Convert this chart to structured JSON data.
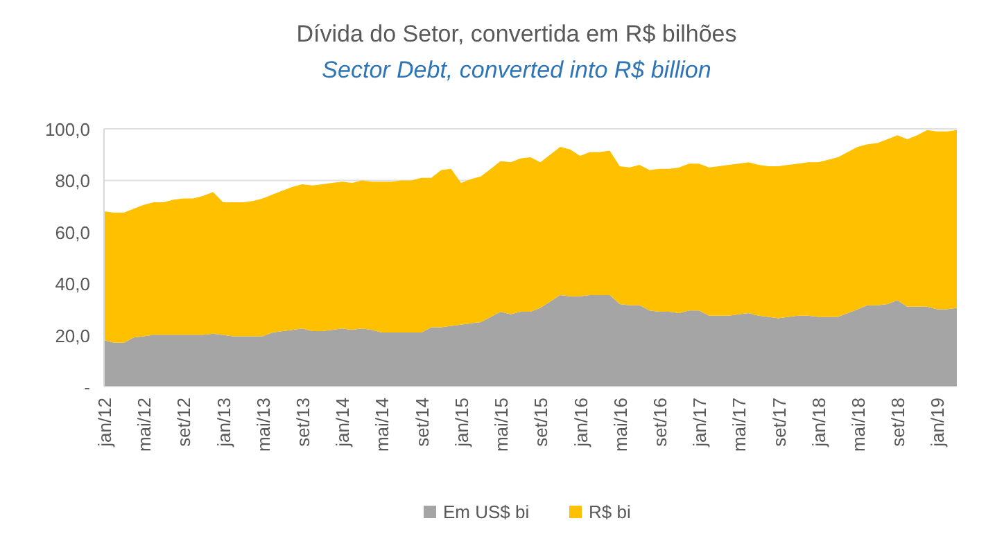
{
  "chart_data": {
    "type": "area",
    "stacked": true,
    "title": "Dívida do Setor, convertida em R$ bilhões",
    "subtitle": "Sector Debt, converted into R$ billion",
    "categories": [
      "jan/12",
      null,
      null,
      null,
      "mai/12",
      null,
      null,
      null,
      "set/12",
      null,
      null,
      null,
      "jan/13",
      null,
      null,
      null,
      "mai/13",
      null,
      null,
      null,
      "set/13",
      null,
      null,
      null,
      "jan/14",
      null,
      null,
      null,
      "mai/14",
      null,
      null,
      null,
      "set/14",
      null,
      null,
      null,
      "jan/15",
      null,
      null,
      null,
      "mai/15",
      null,
      null,
      null,
      "set/15",
      null,
      null,
      null,
      "jan/16",
      null,
      null,
      null,
      "mai/16",
      null,
      null,
      null,
      "set/16",
      null,
      null,
      null,
      "jan/17",
      null,
      null,
      null,
      "mai/17",
      null,
      null,
      null,
      "set/17",
      null,
      null,
      null,
      "jan/18",
      null,
      null,
      null,
      "mai/18",
      null,
      null,
      null,
      "set/18",
      null,
      null,
      null,
      "jan/19",
      null,
      null
    ],
    "series": [
      {
        "name": "Em US$ bi",
        "color": "#a5a5a5",
        "values": [
          18,
          17,
          17,
          19,
          19.5,
          20,
          20,
          20,
          20,
          20,
          20,
          20.5,
          20,
          19.5,
          19.5,
          19.5,
          19.5,
          21,
          21.5,
          22,
          22.5,
          21.5,
          21.5,
          22,
          22.5,
          22,
          22.5,
          22,
          21,
          21,
          21,
          21,
          21,
          23,
          23,
          23.5,
          24,
          24.5,
          25,
          27,
          29,
          28,
          29,
          29,
          30.5,
          33,
          35.5,
          35,
          35,
          35.5,
          35.5,
          35.5,
          32,
          31.5,
          31.5,
          29.5,
          29,
          29,
          28.5,
          29.5,
          29.5,
          27.5,
          27.5,
          27.5,
          28,
          28.5,
          27.5,
          27,
          26.5,
          27,
          27.5,
          27.5,
          27,
          27,
          27,
          28.5,
          30,
          31.5,
          31.5,
          32,
          33.5,
          31,
          31,
          31,
          30,
          30,
          30.5
        ]
      },
      {
        "name": "R$ bi",
        "color": "#ffc000",
        "values": [
          50,
          50.5,
          50.5,
          50,
          51,
          51.5,
          51.5,
          52.5,
          53,
          53,
          54,
          55,
          51.5,
          52,
          52,
          52.5,
          53.5,
          53.5,
          54.5,
          55.5,
          56,
          56.5,
          57,
          57,
          57,
          57,
          57.5,
          57.5,
          58.5,
          58.5,
          59,
          59,
          60,
          58,
          61,
          61,
          55,
          56,
          56.5,
          57.5,
          58.5,
          59,
          59.5,
          60,
          56.5,
          57,
          57.5,
          57,
          54.5,
          55.5,
          55.5,
          56,
          53.5,
          53.5,
          54.5,
          54.5,
          55.5,
          55.5,
          56.5,
          57,
          57,
          57.5,
          58,
          58.5,
          58.5,
          58.5,
          58.5,
          58.5,
          59,
          59,
          59,
          59.5,
          60,
          61,
          62,
          62.5,
          63,
          62.5,
          63,
          64,
          64,
          65,
          66.5,
          68.5,
          69,
          69,
          69
        ]
      }
    ],
    "ylim": [
      0,
      100
    ],
    "yticks": [
      {
        "value": 0,
        "label": "-"
      },
      {
        "value": 20,
        "label": "20,0"
      },
      {
        "value": 40,
        "label": "40,0"
      },
      {
        "value": 60,
        "label": "60,0"
      },
      {
        "value": 80,
        "label": "80,0"
      },
      {
        "value": 100,
        "label": "100,0"
      }
    ],
    "grid": "y",
    "legend": "bottom"
  }
}
